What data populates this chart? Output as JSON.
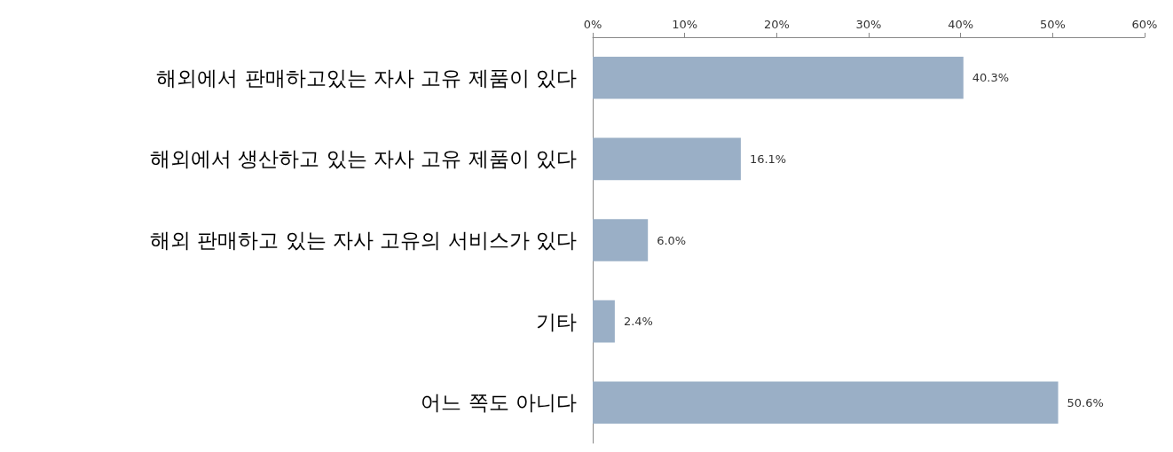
{
  "chart_data": {
    "type": "bar",
    "orientation": "horizontal",
    "categories": [
      "해외에서 판매하고있는 자사 고유 제품이 있다",
      "해외에서 생산하고 있는 자사 고유 제품이 있다",
      "해외 판매하고 있는 자사 고유의 서비스가 있다",
      "기타",
      "어느 쪽도 아니다"
    ],
    "values": [
      40.3,
      16.1,
      6.0,
      2.4,
      50.6
    ],
    "value_labels": [
      "40.3%",
      "16.1%",
      "6.0%",
      "2.4%",
      "50.6%"
    ],
    "color": "#9aafc6",
    "xlim": [
      0,
      60
    ],
    "xticks": [
      {
        "value": 0,
        "label": "0%"
      },
      {
        "value": 10,
        "label": "10%"
      },
      {
        "value": 20,
        "label": "20%"
      },
      {
        "value": 30,
        "label": "30%"
      },
      {
        "value": 40,
        "label": "40%"
      },
      {
        "value": 50,
        "label": "50%"
      },
      {
        "value": 60,
        "label": "60%"
      }
    ],
    "grid": false
  }
}
